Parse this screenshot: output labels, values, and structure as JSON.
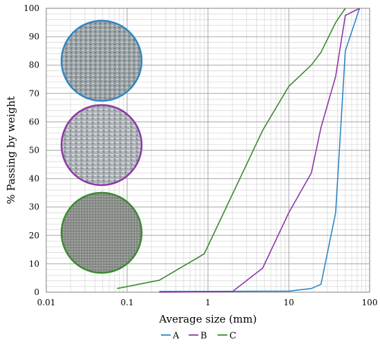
{
  "chart_data": {
    "type": "line",
    "xlabel": "Average size (mm)",
    "ylabel": "% Passing by weight",
    "xscale": "log",
    "xlim": [
      0.01,
      100
    ],
    "ylim": [
      0,
      100
    ],
    "xticks": [
      "0.01",
      "0.1",
      "1",
      "10",
      "100"
    ],
    "yticks": [
      "0",
      "10",
      "20",
      "30",
      "40",
      "50",
      "60",
      "70",
      "80",
      "90",
      "100"
    ],
    "grid": true,
    "legend_position": "bottom",
    "series": [
      {
        "name": "A",
        "color": "#2e86c1",
        "x": [
          0.25,
          1,
          10,
          19,
          25,
          38,
          50,
          75
        ],
        "y": [
          0.3,
          0.3,
          0.4,
          1.3,
          2.8,
          28,
          85,
          100
        ]
      },
      {
        "name": "B",
        "color": "#8e36a8",
        "x": [
          0.25,
          2,
          4.75,
          10,
          19,
          25,
          38,
          50,
          75
        ],
        "y": [
          0,
          0.2,
          8.5,
          28,
          42,
          58,
          76,
          97.5,
          100
        ]
      },
      {
        "name": "C",
        "color": "#3a8a2e",
        "x": [
          0.075,
          0.25,
          0.9,
          4.75,
          10,
          19,
          25,
          38,
          50
        ],
        "y": [
          1.3,
          4.2,
          13.5,
          57,
          72.5,
          80,
          84.5,
          95,
          100
        ]
      }
    ],
    "photos": [
      {
        "series": "A",
        "border": "#2e86c1"
      },
      {
        "series": "B",
        "border": "#8e36a8"
      },
      {
        "series": "C",
        "border": "#3a8a2e"
      }
    ]
  }
}
